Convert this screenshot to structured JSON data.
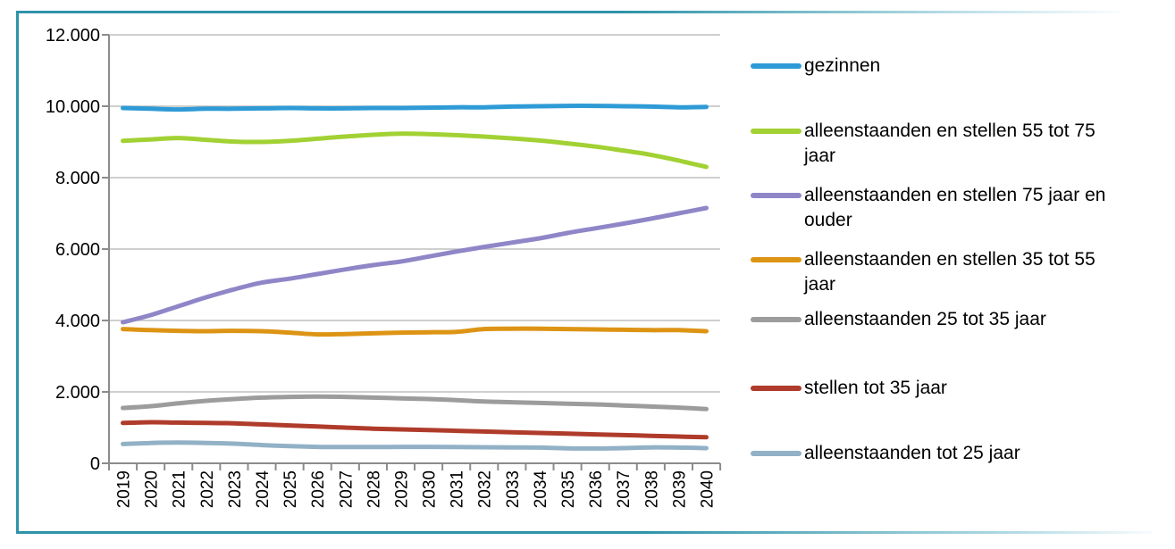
{
  "frame": {
    "border_color": "#2E93A8"
  },
  "chart_data": {
    "type": "line",
    "title": "",
    "xlabel": "",
    "ylabel": "",
    "grid": true,
    "legend_position": "right",
    "ylim": [
      0,
      12000
    ],
    "axis_color": "#8C8C8C",
    "grid_color": "#BFBFBF",
    "tick_label_color": "#000000",
    "y_ticks": [
      {
        "value": 0,
        "label": "0"
      },
      {
        "value": 2000,
        "label": "2.000"
      },
      {
        "value": 4000,
        "label": "4.000"
      },
      {
        "value": 6000,
        "label": "6.000"
      },
      {
        "value": 8000,
        "label": "8.000"
      },
      {
        "value": 10000,
        "label": "10.000"
      },
      {
        "value": 12000,
        "label": "12.000"
      }
    ],
    "x_tick_labels": [
      "2019",
      "2020",
      "2021",
      "2022",
      "2023",
      "2024",
      "2025",
      "2026",
      "2027",
      "2028",
      "2029",
      "2030",
      "2031",
      "2032",
      "2033",
      "2034",
      "2035",
      "2036",
      "2037",
      "2038",
      "2039",
      "2040"
    ],
    "series": [
      {
        "name": "gezinnen",
        "color": "#2E9BD6",
        "values": [
          9950,
          9930,
          9910,
          9930,
          9930,
          9940,
          9950,
          9940,
          9940,
          9950,
          9950,
          9960,
          9970,
          9970,
          9990,
          10000,
          10010,
          10010,
          10000,
          9990,
          9970,
          9980
        ]
      },
      {
        "name": "alleenstaanden en stellen 55 tot 75 jaar",
        "color": "#A2D133",
        "values": [
          9030,
          9070,
          9110,
          9060,
          9010,
          9000,
          9030,
          9090,
          9150,
          9200,
          9230,
          9220,
          9190,
          9150,
          9100,
          9040,
          8960,
          8870,
          8760,
          8640,
          8480,
          8300
        ]
      },
      {
        "name": "alleenstaanden en stellen 75 jaar en ouder",
        "color": "#8F86C8",
        "values": [
          3950,
          4150,
          4400,
          4650,
          4870,
          5060,
          5170,
          5300,
          5430,
          5550,
          5650,
          5790,
          5930,
          6060,
          6180,
          6300,
          6450,
          6580,
          6710,
          6850,
          7000,
          7150
        ]
      },
      {
        "name": "alleenstaanden en stellen 35 tot 55 jaar",
        "color": "#DD9414",
        "values": [
          3760,
          3730,
          3710,
          3700,
          3710,
          3700,
          3660,
          3610,
          3620,
          3640,
          3660,
          3670,
          3680,
          3760,
          3770,
          3770,
          3760,
          3750,
          3740,
          3730,
          3730,
          3700
        ]
      },
      {
        "name": "alleenstaanden 25 tot 35 jaar",
        "color": "#9C9C9C",
        "values": [
          1550,
          1600,
          1680,
          1750,
          1800,
          1840,
          1860,
          1870,
          1860,
          1840,
          1820,
          1800,
          1770,
          1730,
          1710,
          1690,
          1670,
          1650,
          1620,
          1590,
          1560,
          1520
        ]
      },
      {
        "name": "stellen tot 35 jaar",
        "color": "#AF3B2B",
        "values": [
          1130,
          1150,
          1140,
          1130,
          1120,
          1090,
          1060,
          1030,
          1000,
          970,
          950,
          930,
          910,
          890,
          870,
          850,
          830,
          810,
          790,
          770,
          750,
          730
        ]
      },
      {
        "name": "alleenstaanden tot 25 jaar",
        "color": "#92B1C6",
        "values": [
          540,
          570,
          580,
          570,
          550,
          510,
          480,
          460,
          455,
          455,
          460,
          460,
          455,
          450,
          445,
          440,
          420,
          415,
          425,
          445,
          440,
          425
        ]
      }
    ]
  }
}
